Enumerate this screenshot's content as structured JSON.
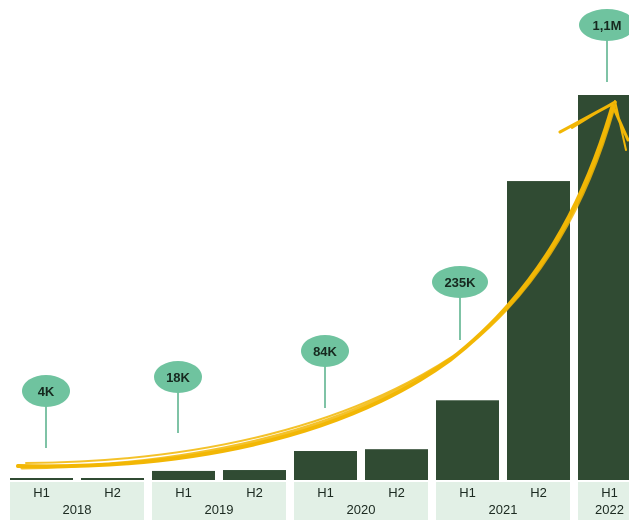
{
  "chart_data": {
    "type": "bar",
    "categories": [
      "H1 2018",
      "H2 2018",
      "H1 2019",
      "H2 2019",
      "H1 2020",
      "H2 2020",
      "H1 2021",
      "H2 2021",
      "H1 2022"
    ],
    "x_ticks": [
      "H1",
      "H2",
      "H1",
      "H2",
      "H1",
      "H2",
      "H1",
      "H2",
      "H1"
    ],
    "groups": [
      {
        "label": "2018",
        "count": 2
      },
      {
        "label": "2019",
        "count": 2
      },
      {
        "label": "2020",
        "count": 2
      },
      {
        "label": "2021",
        "count": 2
      },
      {
        "label": "2022",
        "count": 1
      }
    ],
    "values": [
      2,
      2,
      10,
      11,
      32,
      34,
      88,
      330,
      425
    ],
    "ylim": [
      0,
      440
    ],
    "annotations": [
      {
        "text": "4K",
        "at": "H2 2018"
      },
      {
        "text": "18K",
        "at": "H1 2019"
      },
      {
        "text": "84K",
        "at": "H2 2020"
      },
      {
        "text": "235K",
        "at": "H1 2021"
      },
      {
        "text": "1,1M",
        "at": "H1 2022"
      }
    ],
    "trend_arrow": true,
    "colors": {
      "bar": "#304b33",
      "year_band": "#e2f0e6",
      "callout": "#6fc39f",
      "callout_line": "#7fc3a6",
      "arrow": "#f2b705"
    }
  }
}
